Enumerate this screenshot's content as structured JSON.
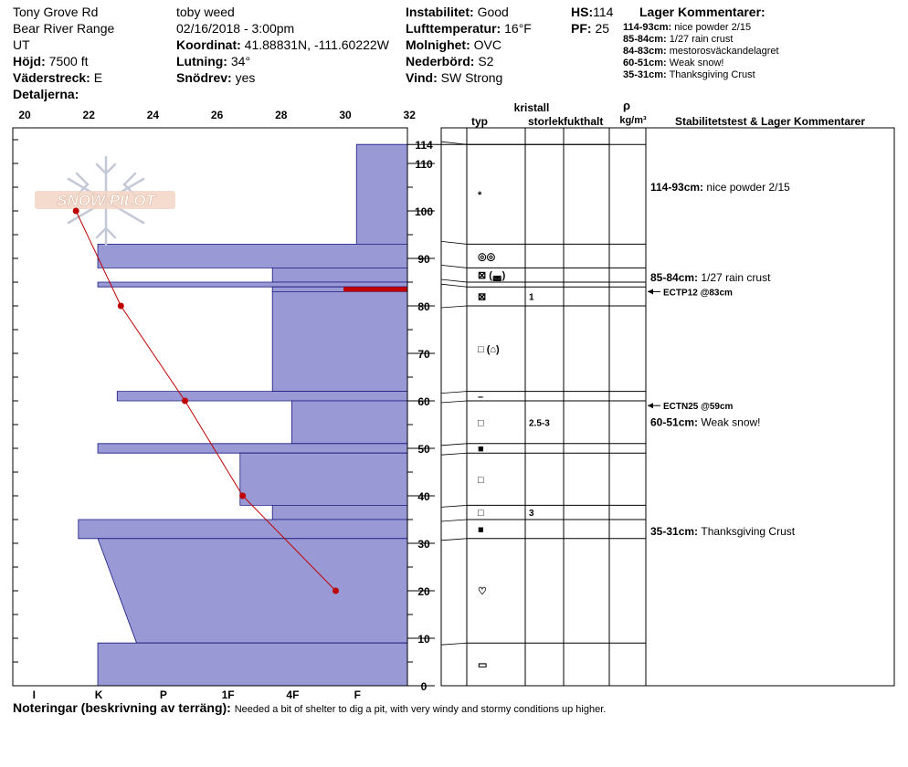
{
  "header": {
    "site": "Tony Grove Rd",
    "range": "Bear River Range",
    "state": "UT",
    "elevation_label": "Höjd:",
    "elevation": "7500 ft",
    "aspect_label": "Väderstreck:",
    "aspect": "E",
    "details_label": "Detaljerna:",
    "observer": "toby weed",
    "datetime": "02/16/2018 - 3:00pm",
    "coord_label": "Koordinat:",
    "coord": "41.88831N, -111.60222W",
    "slope_label": "Lutning:",
    "slope": "34°",
    "drift_label": "Snödrev:",
    "drift": "yes",
    "stability_label": "Instabilitet:",
    "stability": "Good",
    "airtemp_label": "Lufttemperatur:",
    "airtemp": "16°F",
    "sky_label": "Molnighet:",
    "sky": "OVC",
    "precip_label": "Nederbörd:",
    "precip": "S2",
    "wind_label": "Vind:",
    "wind": "SW Strong",
    "hs_label": "HS:",
    "hs": "114",
    "pf_label": "PF:",
    "pf": "25",
    "layer_comments_title": "Lager Kommentarer:"
  },
  "layer_comments": [
    {
      "range": "114-93cm:",
      "text": "nice powder 2/15"
    },
    {
      "range": "85-84cm:",
      "text": "1/27 rain crust"
    },
    {
      "range": "84-83cm:",
      "text": "mestorosväckandelagret"
    },
    {
      "range": "60-51cm:",
      "text": "Weak snow!"
    },
    {
      "range": "35-31cm:",
      "text": "Thanksgiving Crust"
    }
  ],
  "logo_text": "SNOW PILOT",
  "columns": {
    "crystal": "kristall",
    "type": "typ",
    "size": "storlek",
    "moisture": "fukthalt",
    "rho": "ρ",
    "density_unit": "kg/m³",
    "comments": "Stabilitetstest & Lager Kommentarer"
  },
  "right_comments": [
    {
      "range": "114-93cm:",
      "text": "nice powder 2/15",
      "y_cm": 105
    },
    {
      "range": "85-84cm:",
      "text": "1/27 rain crust",
      "y_cm": 86
    },
    {
      "range": "60-51cm:",
      "text": "Weak snow!",
      "y_cm": 55.5
    },
    {
      "range": "35-31cm:",
      "text": "Thanksgiving Crust",
      "y_cm": 32.5
    }
  ],
  "stability_tests": [
    {
      "label": "ECTP12 @83cm",
      "depth_cm": 83
    },
    {
      "label": "ECTN25 @59cm",
      "depth_cm": 59
    }
  ],
  "notes_label": "Noteringar (beskrivning av terräng):",
  "notes": "Needed a bit of shelter to dig a pit, with very windy and stormy conditions up higher.",
  "colors": {
    "hardness_fill": "#9999D5",
    "temperature_line": "#C00000",
    "critical_layer": "#C00000"
  },
  "chart_data": {
    "type": "area",
    "temp_axis": {
      "label": "",
      "min": 20,
      "max": 32,
      "ticks": [
        20,
        22,
        24,
        26,
        28,
        30,
        32
      ]
    },
    "height_axis": {
      "label": "",
      "min": 0,
      "max": 120,
      "ticks": [
        0,
        10,
        20,
        30,
        40,
        50,
        60,
        70,
        80,
        90,
        100,
        110,
        114
      ]
    },
    "hardness_axis": {
      "ticks": [
        "I",
        "K",
        "P",
        "1F",
        "4F",
        "F"
      ],
      "values": [
        1,
        2,
        3,
        4,
        5,
        6
      ]
    },
    "hardness_profile": [
      {
        "top": 114,
        "bottom": 93,
        "hardness": 6.0
      },
      {
        "top": 93,
        "bottom": 88,
        "hardness": 2.0
      },
      {
        "top": 88,
        "bottom": 85,
        "hardness": 4.7
      },
      {
        "top": 85,
        "bottom": 84,
        "hardness": 2.0
      },
      {
        "top": 84,
        "bottom": 83,
        "hardness": 4.7
      },
      {
        "top": 83,
        "bottom": 62,
        "hardness": 4.7
      },
      {
        "top": 62,
        "bottom": 60,
        "hardness": 2.3
      },
      {
        "top": 60,
        "bottom": 51,
        "hardness": 5.0
      },
      {
        "top": 51,
        "bottom": 49,
        "hardness": 2.0
      },
      {
        "top": 49,
        "bottom": 38,
        "hardness": 4.2
      },
      {
        "top": 38,
        "bottom": 35,
        "hardness": 4.7
      },
      {
        "top": 35,
        "bottom": 31,
        "hardness": 1.7
      },
      {
        "top": 31,
        "bottom": 9,
        "hardness_top": 2.0,
        "hardness_bottom": 2.6
      },
      {
        "top": 9,
        "bottom": 0,
        "hardness": 2.0
      }
    ],
    "critical_layer": {
      "top": 84,
      "bottom": 83
    },
    "temperature_profile": [
      {
        "depth": 100,
        "temp": 21.6
      },
      {
        "depth": 80,
        "temp": 23.0
      },
      {
        "depth": 60,
        "temp": 25.0
      },
      {
        "depth": 40,
        "temp": 26.8
      },
      {
        "depth": 20,
        "temp": 29.7
      }
    ],
    "layers": [
      {
        "top": 114,
        "bottom": 93,
        "grain": "*",
        "size": ""
      },
      {
        "top": 93,
        "bottom": 88,
        "grain": "◎◎",
        "size": ""
      },
      {
        "top": 88,
        "bottom": 85,
        "grain": "⊠ (◛)",
        "size": ""
      },
      {
        "top": 85,
        "bottom": 84,
        "grain": "",
        "size": ""
      },
      {
        "top": 84,
        "bottom": 80,
        "grain": "⊠",
        "size": "1"
      },
      {
        "top": 80,
        "bottom": 62,
        "grain": "□ (⌂)",
        "size": ""
      },
      {
        "top": 62,
        "bottom": 60,
        "grain": "–",
        "size": ""
      },
      {
        "top": 60,
        "bottom": 51,
        "grain": "□",
        "size": "2.5-3"
      },
      {
        "top": 51,
        "bottom": 49,
        "grain": "■",
        "size": ""
      },
      {
        "top": 49,
        "bottom": 38,
        "grain": "□",
        "size": ""
      },
      {
        "top": 38,
        "bottom": 35,
        "grain": "□",
        "size": "3"
      },
      {
        "top": 35,
        "bottom": 31,
        "grain": "■",
        "size": ""
      },
      {
        "top": 31,
        "bottom": 9,
        "grain": "♡",
        "size": ""
      },
      {
        "top": 9,
        "bottom": 0,
        "grain": "▭",
        "size": ""
      }
    ]
  }
}
